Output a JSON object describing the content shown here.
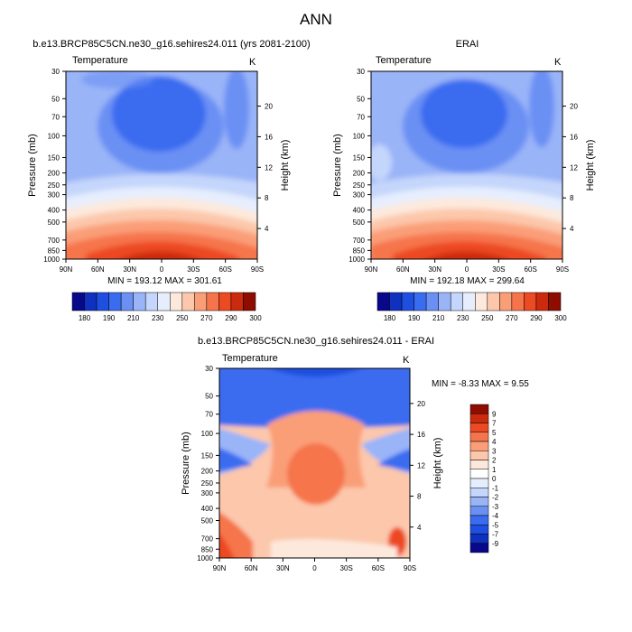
{
  "page": {
    "title": "ANN"
  },
  "panels": {
    "p1": {
      "title": "b.e13.BRCP85C5CN.ne30_g16.sehires24.011 (yrs 2081-2100)",
      "variable": "Temperature",
      "units": "K",
      "stats": "MIN = 193.12  MAX = 301.61"
    },
    "p2": {
      "title": "ERAI",
      "variable": "Temperature",
      "units": "K",
      "stats": "MIN = 192.18  MAX = 299.64"
    },
    "p3": {
      "title": "b.e13.BRCP85C5CN.ne30_g16.sehires24.011 - ERAI",
      "variable": "Temperature",
      "units": "K",
      "stats": "MIN =  -8.33  MAX =   9.55"
    }
  },
  "chart_data": [
    {
      "type": "heatmap",
      "title": "b.e13.BRCP85C5CN.ne30_g16.sehires24.011 (yrs 2081-2100)",
      "subtitle": "Temperature",
      "units": "K",
      "xlabel": "",
      "ylabel": "Pressure (mb)",
      "ylabel_right": "Height (km)",
      "x_ticks": [
        "90N",
        "60N",
        "30N",
        "0",
        "30S",
        "60S",
        "90S"
      ],
      "y_ticks": [
        30,
        50,
        70,
        100,
        150,
        200,
        250,
        300,
        400,
        500,
        700,
        850,
        1000
      ],
      "height_ticks": [
        4,
        8,
        12,
        16,
        20
      ],
      "xlim": [
        90,
        -90
      ],
      "ylim": [
        1000,
        30
      ],
      "min": 193.12,
      "max": 301.61,
      "contour_levels": [
        180,
        190,
        200,
        210,
        220,
        230,
        240,
        250,
        260,
        270,
        280,
        290,
        300
      ]
    },
    {
      "type": "heatmap",
      "title": "ERAI",
      "subtitle": "Temperature",
      "units": "K",
      "xlabel": "",
      "ylabel": "Pressure (mb)",
      "ylabel_right": "Height (km)",
      "x_ticks": [
        "90N",
        "60N",
        "30N",
        "0",
        "30S",
        "60S",
        "90S"
      ],
      "y_ticks": [
        30,
        50,
        70,
        100,
        150,
        200,
        250,
        300,
        400,
        500,
        700,
        850,
        1000
      ],
      "height_ticks": [
        4,
        8,
        12,
        16,
        20
      ],
      "xlim": [
        90,
        -90
      ],
      "ylim": [
        1000,
        30
      ],
      "min": 192.18,
      "max": 299.64,
      "contour_levels": [
        180,
        190,
        200,
        210,
        220,
        230,
        240,
        250,
        260,
        270,
        280,
        290,
        300
      ]
    },
    {
      "type": "heatmap",
      "title": "b.e13.BRCP85C5CN.ne30_g16.sehires24.011 - ERAI",
      "subtitle": "Temperature",
      "units": "K",
      "xlabel": "",
      "ylabel": "Pressure (mb)",
      "ylabel_right": "Height (km)",
      "x_ticks": [
        "90N",
        "60N",
        "30N",
        "0",
        "30S",
        "60S",
        "90S"
      ],
      "y_ticks": [
        30,
        50,
        70,
        100,
        150,
        200,
        250,
        300,
        400,
        500,
        700,
        850,
        1000
      ],
      "height_ticks": [
        4,
        8,
        12,
        16,
        20
      ],
      "xlim": [
        90,
        -90
      ],
      "ylim": [
        1000,
        30
      ],
      "min": -8.33,
      "max": 9.55,
      "contour_levels": [
        -9,
        -7,
        -5,
        -4,
        -3,
        -2,
        -1,
        0,
        1,
        2,
        3,
        4,
        5,
        7,
        9
      ]
    }
  ],
  "colorbars": {
    "abs": {
      "labels": [
        "180",
        "190",
        "210",
        "230",
        "250",
        "270",
        "290",
        "300"
      ],
      "colors": [
        "#08088a",
        "#1030c0",
        "#1e4fe0",
        "#3a6cf0",
        "#6a90f4",
        "#9ab4f8",
        "#c4d6fb",
        "#e6eefe",
        "#fde9dc",
        "#fcc7ab",
        "#fa9e78",
        "#f6744c",
        "#ec4a22",
        "#cc2a0c",
        "#8e0c00"
      ]
    },
    "diff": {
      "labels": [
        "9",
        "7",
        "5",
        "4",
        "3",
        "2",
        "1",
        "0",
        "-1",
        "-2",
        "-3",
        "-4",
        "-5",
        "-7",
        "-9"
      ],
      "colors": [
        "#8e0c00",
        "#cc2a0c",
        "#ec4a22",
        "#f6744c",
        "#fa9e78",
        "#fcc7ab",
        "#fde9dc",
        "#ffffff",
        "#e6eefe",
        "#c4d6fb",
        "#9ab4f8",
        "#6a90f4",
        "#3a6cf0",
        "#1e4fe0",
        "#1030c0",
        "#08088a"
      ]
    }
  }
}
